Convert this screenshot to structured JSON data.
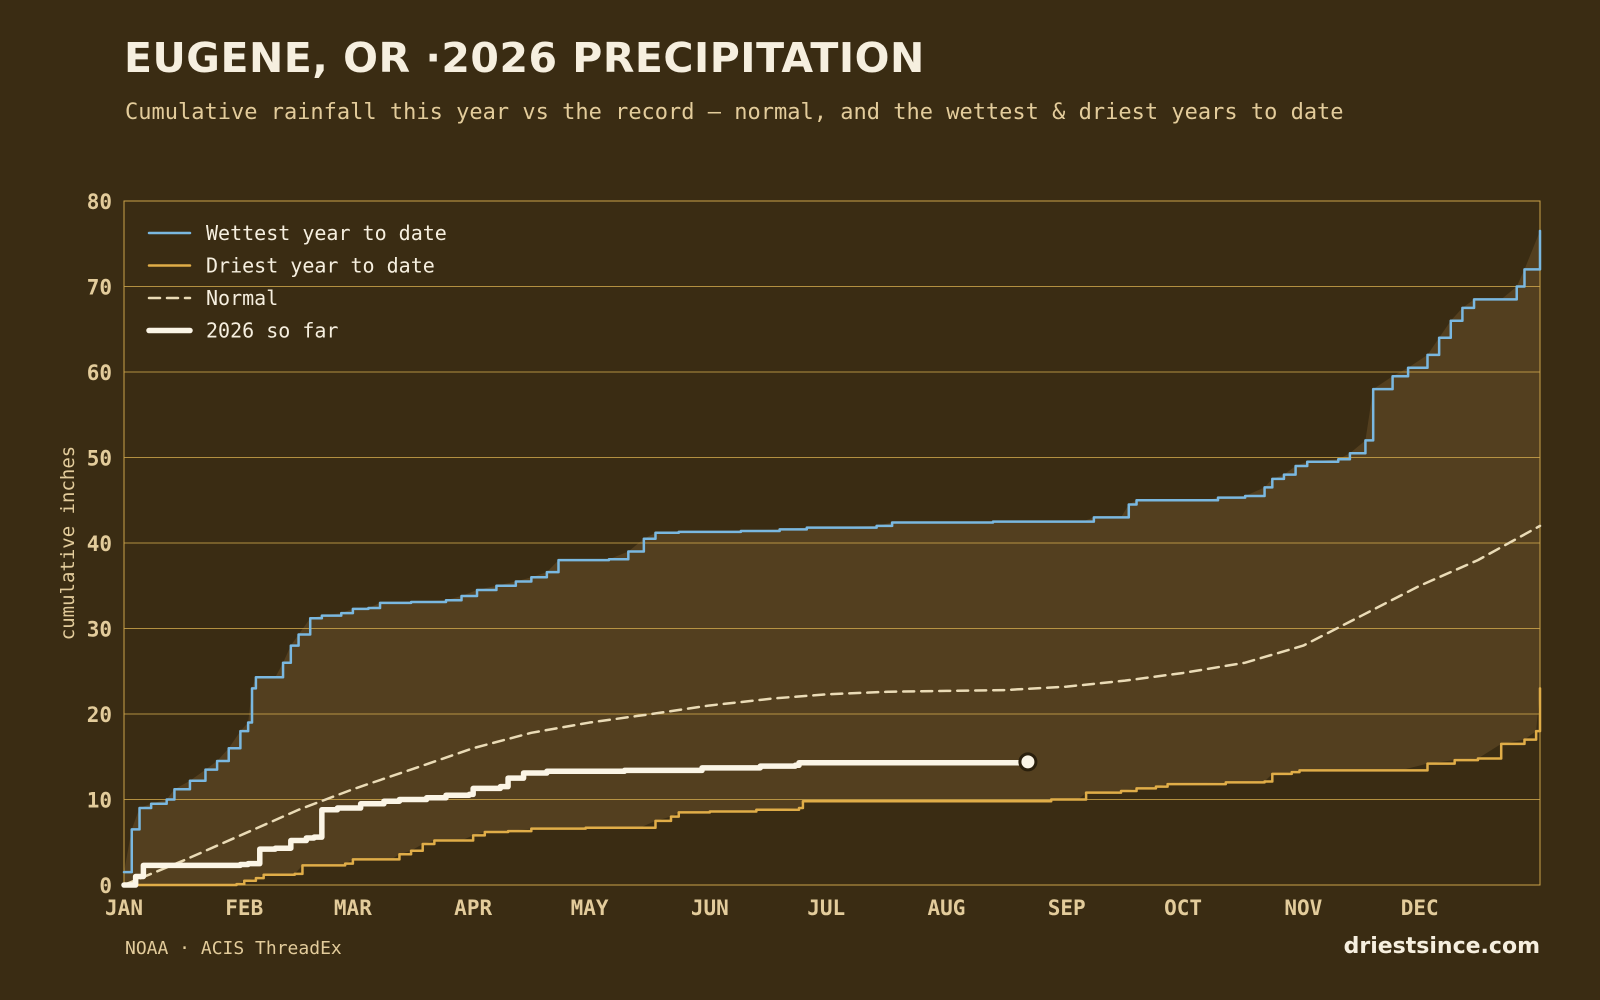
{
  "header": {
    "title": "EUGENE, OR ·2026 PRECIPITATION",
    "subtitle": "Cumulative rainfall this year vs the record — normal, and the wettest & driest years to date"
  },
  "footer": {
    "source": "NOAA · ACIS ThreadEx",
    "site": "driestsince.com"
  },
  "colors": {
    "background": "#3a2c13",
    "band": "#533f1f",
    "grid": "#c9a24a",
    "wettest": "#7ab8e0",
    "driest": "#e0ad48",
    "normal": "#eadbb6",
    "current": "#fbf5e6",
    "tick_text": "#e3cc9b"
  },
  "chart_data": {
    "type": "line",
    "title": "EUGENE, OR ·2026 PRECIPITATION",
    "xlabel": "",
    "ylabel": "cumulative inches",
    "xlim": [
      1,
      366
    ],
    "ylim": [
      0,
      80
    ],
    "yticks": [
      0,
      10,
      20,
      30,
      40,
      50,
      60,
      70,
      80
    ],
    "xticks": [
      {
        "label": "JAN",
        "day": 1
      },
      {
        "label": "FEB",
        "day": 32
      },
      {
        "label": "MAR",
        "day": 60
      },
      {
        "label": "APR",
        "day": 91
      },
      {
        "label": "MAY",
        "day": 121
      },
      {
        "label": "JUN",
        "day": 152
      },
      {
        "label": "JUL",
        "day": 182
      },
      {
        "label": "AUG",
        "day": 213
      },
      {
        "label": "SEP",
        "day": 244
      },
      {
        "label": "OCT",
        "day": 274
      },
      {
        "label": "NOV",
        "day": 305
      },
      {
        "label": "DEC",
        "day": 335
      }
    ],
    "grid": "horizontal",
    "legend_position": "top-left",
    "band": {
      "between": [
        "Driest year to date",
        "Wettest year to date"
      ]
    },
    "series": [
      {
        "name": "Wettest year to date",
        "style": "solid",
        "points": [
          [
            1,
            1.5
          ],
          [
            3,
            6.5
          ],
          [
            5,
            9
          ],
          [
            8,
            9.5
          ],
          [
            12,
            10
          ],
          [
            14,
            11.2
          ],
          [
            18,
            12.2
          ],
          [
            22,
            13.5
          ],
          [
            25,
            14.5
          ],
          [
            28,
            16
          ],
          [
            31,
            18
          ],
          [
            33,
            19
          ],
          [
            34,
            23
          ],
          [
            35,
            24.3
          ],
          [
            40,
            24.3
          ],
          [
            42,
            26
          ],
          [
            44,
            28
          ],
          [
            46,
            29.3
          ],
          [
            49,
            31.2
          ],
          [
            52,
            31.5
          ],
          [
            57,
            31.8
          ],
          [
            60,
            32.3
          ],
          [
            64,
            32.4
          ],
          [
            67,
            33
          ],
          [
            75,
            33.1
          ],
          [
            84,
            33.3
          ],
          [
            88,
            33.8
          ],
          [
            92,
            34.5
          ],
          [
            97,
            35
          ],
          [
            102,
            35.5
          ],
          [
            106,
            36
          ],
          [
            110,
            36.6
          ],
          [
            113,
            38
          ],
          [
            120,
            38
          ],
          [
            126,
            38.1
          ],
          [
            131,
            39
          ],
          [
            135,
            40.5
          ],
          [
            138,
            41.2
          ],
          [
            144,
            41.3
          ],
          [
            160,
            41.4
          ],
          [
            170,
            41.6
          ],
          [
            177,
            41.8
          ],
          [
            195,
            42
          ],
          [
            199,
            42.4
          ],
          [
            225,
            42.5
          ],
          [
            248,
            42.5
          ],
          [
            251,
            43
          ],
          [
            258,
            43
          ],
          [
            260,
            44.5
          ],
          [
            262,
            45
          ],
          [
            280,
            45
          ],
          [
            283,
            45.3
          ],
          [
            290,
            45.5
          ],
          [
            295,
            46.5
          ],
          [
            297,
            47.5
          ],
          [
            300,
            48
          ],
          [
            303,
            49
          ],
          [
            306,
            49.5
          ],
          [
            314,
            49.8
          ],
          [
            317,
            50.5
          ],
          [
            321,
            52
          ],
          [
            323,
            58
          ],
          [
            328,
            59.5
          ],
          [
            332,
            60.5
          ],
          [
            337,
            62
          ],
          [
            340,
            64
          ],
          [
            343,
            66
          ],
          [
            346,
            67.5
          ],
          [
            349,
            68.5
          ],
          [
            356,
            68.5
          ],
          [
            360,
            70
          ],
          [
            362,
            72
          ],
          [
            366,
            76.5
          ]
        ]
      },
      {
        "name": "Driest year to date",
        "style": "solid",
        "points": [
          [
            1,
            0
          ],
          [
            20,
            0
          ],
          [
            30,
            0.1
          ],
          [
            32,
            0.5
          ],
          [
            35,
            0.8
          ],
          [
            37,
            1.2
          ],
          [
            40,
            1.2
          ],
          [
            45,
            1.3
          ],
          [
            47,
            2.3
          ],
          [
            55,
            2.3
          ],
          [
            58,
            2.5
          ],
          [
            60,
            3
          ],
          [
            70,
            3
          ],
          [
            72,
            3.6
          ],
          [
            75,
            4
          ],
          [
            78,
            4.8
          ],
          [
            81,
            5.2
          ],
          [
            88,
            5.2
          ],
          [
            91,
            5.8
          ],
          [
            94,
            6.2
          ],
          [
            100,
            6.3
          ],
          [
            106,
            6.6
          ],
          [
            120,
            6.7
          ],
          [
            134,
            6.7
          ],
          [
            138,
            7.5
          ],
          [
            142,
            8
          ],
          [
            144,
            8.5
          ],
          [
            152,
            8.6
          ],
          [
            160,
            8.6
          ],
          [
            164,
            8.8
          ],
          [
            175,
            9
          ],
          [
            176,
            9.8
          ],
          [
            210,
            9.8
          ],
          [
            236,
            9.8
          ],
          [
            240,
            10
          ],
          [
            247,
            10
          ],
          [
            249,
            10.8
          ],
          [
            258,
            11
          ],
          [
            262,
            11.3
          ],
          [
            267,
            11.5
          ],
          [
            270,
            11.8
          ],
          [
            285,
            12
          ],
          [
            295,
            12.1
          ],
          [
            297,
            13
          ],
          [
            302,
            13.2
          ],
          [
            304,
            13.4
          ],
          [
            330,
            13.4
          ],
          [
            337,
            14.2
          ],
          [
            344,
            14.6
          ],
          [
            350,
            14.8
          ],
          [
            356,
            16.5
          ],
          [
            362,
            17
          ],
          [
            365,
            18
          ],
          [
            366,
            23
          ]
        ]
      },
      {
        "name": "Normal",
        "style": "dashed",
        "points": [
          [
            1,
            0
          ],
          [
            16,
            2.8
          ],
          [
            32,
            6
          ],
          [
            46,
            8.8
          ],
          [
            60,
            11.2
          ],
          [
            75,
            13.5
          ],
          [
            91,
            16
          ],
          [
            106,
            17.8
          ],
          [
            121,
            19
          ],
          [
            137,
            20
          ],
          [
            152,
            21
          ],
          [
            168,
            21.8
          ],
          [
            182,
            22.3
          ],
          [
            198,
            22.6
          ],
          [
            213,
            22.7
          ],
          [
            228,
            22.8
          ],
          [
            244,
            23.2
          ],
          [
            259,
            23.9
          ],
          [
            274,
            24.8
          ],
          [
            290,
            26
          ],
          [
            305,
            28
          ],
          [
            320,
            31.5
          ],
          [
            335,
            35
          ],
          [
            350,
            38
          ],
          [
            366,
            42
          ]
        ]
      },
      {
        "name": "2026 so far",
        "style": "bold",
        "points": [
          [
            1,
            0
          ],
          [
            4,
            1
          ],
          [
            6,
            2.3
          ],
          [
            31,
            2.4
          ],
          [
            33,
            2.5
          ],
          [
            36,
            4.2
          ],
          [
            40,
            4.3
          ],
          [
            44,
            5.2
          ],
          [
            48,
            5.5
          ],
          [
            50,
            5.6
          ],
          [
            52,
            8.8
          ],
          [
            56,
            9
          ],
          [
            62,
            9.5
          ],
          [
            68,
            9.8
          ],
          [
            72,
            10
          ],
          [
            79,
            10.2
          ],
          [
            84,
            10.5
          ],
          [
            90,
            10.6
          ],
          [
            91,
            11.3
          ],
          [
            98,
            11.5
          ],
          [
            100,
            12.5
          ],
          [
            104,
            13.1
          ],
          [
            110,
            13.3
          ],
          [
            130,
            13.4
          ],
          [
            150,
            13.7
          ],
          [
            165,
            13.9
          ],
          [
            174,
            14
          ],
          [
            175,
            14.3
          ],
          [
            200,
            14.3
          ],
          [
            234,
            14.4
          ]
        ]
      }
    ],
    "current_marker": {
      "day": 234,
      "value": 14.4
    }
  }
}
